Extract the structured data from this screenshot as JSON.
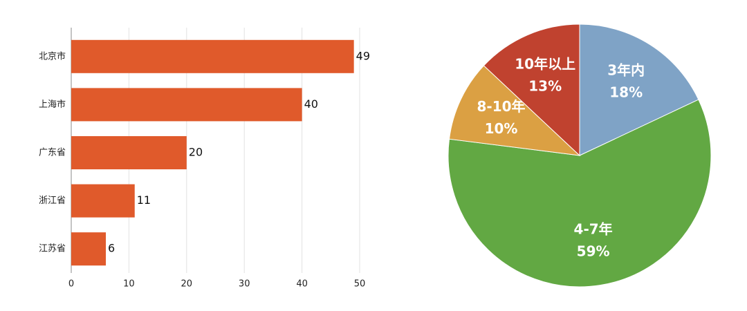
{
  "chart_data": [
    {
      "type": "bar",
      "orientation": "horizontal",
      "categories": [
        "北京市",
        "上海市",
        "广东省",
        "浙江省",
        "江苏省"
      ],
      "values": [
        49,
        40,
        20,
        11,
        6
      ],
      "color": "#e05a2b",
      "xlim": [
        0,
        50
      ],
      "xticks": [
        0,
        10,
        20,
        30,
        40,
        50
      ],
      "grid": true
    },
    {
      "type": "pie",
      "categories": [
        "3年内",
        "4-7年",
        "8-10年",
        "10年以上"
      ],
      "values": [
        18,
        59,
        10,
        13
      ],
      "value_labels": [
        "18%",
        "59%",
        "10%",
        "13%"
      ],
      "colors": [
        "#7fa3c6",
        "#62a843",
        "#dba043",
        "#c0422f"
      ]
    }
  ]
}
